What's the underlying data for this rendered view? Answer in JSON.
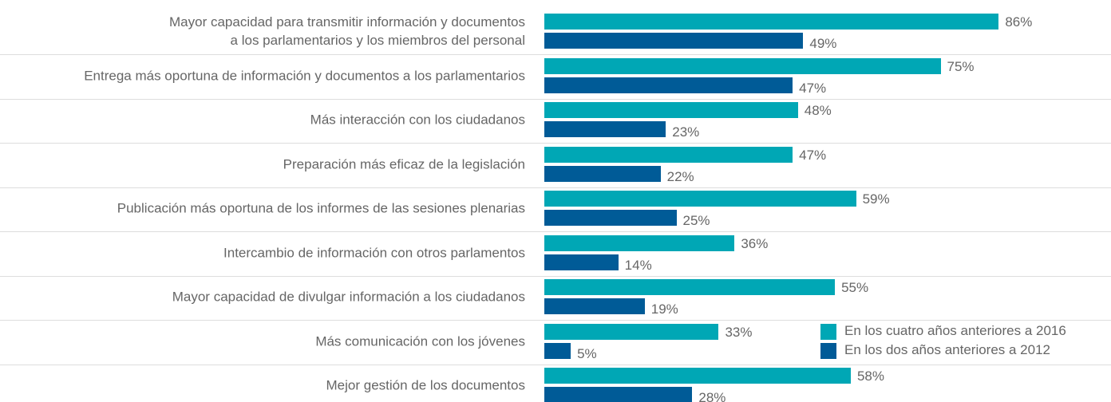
{
  "chart_data": {
    "type": "hbar",
    "categories": [
      "Mayor capacidad para transmitir información y documentos\na los parlamentarios y los miembros del personal",
      "Entrega más oportuna de información y documentos a los parlamentarios",
      "Más interacción con los ciudadanos",
      "Preparación más eficaz de la legislación",
      "Publicación más oportuna de los informes de las sesiones plenarias",
      "Intercambio de información con otros parlamentos",
      "Mayor capacidad de divulgar información a los ciudadanos",
      "Más comunicación con los jóvenes",
      "Mejor gestión de los documentos"
    ],
    "series": [
      {
        "name": "En los cuatro años anteriores a 2016",
        "color": "#00a7b5",
        "values": [
          86,
          75,
          48,
          47,
          59,
          36,
          55,
          33,
          58
        ],
        "value_labels": [
          "86%",
          "75%",
          "48%",
          "47%",
          "59%",
          "36%",
          "55%",
          "33%",
          "58%"
        ]
      },
      {
        "name": "En los dos años anteriores a 2012",
        "color": "#005b97",
        "values": [
          49,
          47,
          23,
          22,
          25,
          14,
          19,
          5,
          28
        ],
        "value_labels": [
          "49%",
          "47%",
          "23%",
          "22%",
          "25%",
          "14%",
          "19%",
          "5%",
          "28%"
        ]
      }
    ]
  }
}
